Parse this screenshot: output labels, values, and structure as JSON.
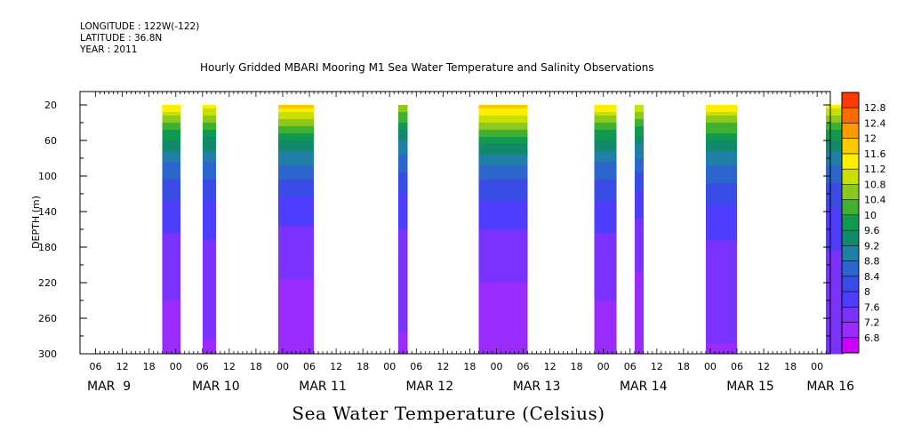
{
  "header": {
    "longitude": "LONGITUDE : 122W(-122)",
    "latitude": "LATITUDE : 36.8N",
    "year": "YEAR : 2011"
  },
  "chart_data": {
    "type": "heatmap",
    "title": "Hourly Gridded MBARI Mooring M1 Sea Water Temperature and Salinity Observations",
    "xlabel": "Sea Water Temperature (Celsius)",
    "ylabel": "DEPTH (m)",
    "x_unit": "hours since 2011-03-09 00:00",
    "xlim": [
      6,
      174
    ],
    "ylim": [
      300,
      5
    ],
    "y_ticks": [
      20,
      60,
      100,
      140,
      180,
      220,
      260,
      300
    ],
    "x_hour_ticks": [
      {
        "h": 6,
        "label": "06"
      },
      {
        "h": 12,
        "label": "12"
      },
      {
        "h": 18,
        "label": "18"
      },
      {
        "h": 24,
        "label": "00"
      },
      {
        "h": 30,
        "label": "06"
      },
      {
        "h": 36,
        "label": "12"
      },
      {
        "h": 42,
        "label": "18"
      },
      {
        "h": 48,
        "label": "00"
      },
      {
        "h": 54,
        "label": "06"
      },
      {
        "h": 60,
        "label": "12"
      },
      {
        "h": 66,
        "label": "18"
      },
      {
        "h": 72,
        "label": "00"
      },
      {
        "h": 78,
        "label": "06"
      },
      {
        "h": 84,
        "label": "12"
      },
      {
        "h": 90,
        "label": "18"
      },
      {
        "h": 96,
        "label": "00"
      },
      {
        "h": 102,
        "label": "06"
      },
      {
        "h": 108,
        "label": "12"
      },
      {
        "h": 114,
        "label": "18"
      },
      {
        "h": 120,
        "label": "00"
      },
      {
        "h": 126,
        "label": "06"
      },
      {
        "h": 132,
        "label": "12"
      },
      {
        "h": 138,
        "label": "18"
      },
      {
        "h": 144,
        "label": "00"
      },
      {
        "h": 150,
        "label": "06"
      },
      {
        "h": 156,
        "label": "12"
      },
      {
        "h": 162,
        "label": "18"
      },
      {
        "h": 168,
        "label": "00"
      }
    ],
    "date_labels": [
      {
        "h": 9,
        "label": "MAR  9"
      },
      {
        "h": 33,
        "label": "MAR 10"
      },
      {
        "h": 57,
        "label": "MAR 11"
      },
      {
        "h": 81,
        "label": "MAR 12"
      },
      {
        "h": 105,
        "label": "MAR 13"
      },
      {
        "h": 129,
        "label": "MAR 14"
      },
      {
        "h": 153,
        "label": "MAR 15"
      },
      {
        "h": 171,
        "label": "MAR 16"
      }
    ],
    "colorbar": {
      "levels": [
        6.8,
        7.2,
        7.6,
        8,
        8.4,
        8.8,
        9.2,
        9.6,
        10,
        10.4,
        10.8,
        11.2,
        11.6,
        12,
        12.4,
        12.8
      ],
      "colors": [
        "#cc00ff",
        "#9a2bff",
        "#7a33ff",
        "#4d3dff",
        "#3a4ce6",
        "#2a66cc",
        "#1f7fa6",
        "#118a6a",
        "#109a50",
        "#3fb030",
        "#8ec81a",
        "#c8e000",
        "#ffee00",
        "#ffc800",
        "#ff9a00",
        "#ff6a00",
        "#ff3a00",
        "#e01000",
        "#a00000"
      ]
    },
    "segments": [
      {
        "start": 21,
        "end": 25,
        "surface_temp": 11.6,
        "deep_temp": 7.0
      },
      {
        "start": 30,
        "end": 33,
        "surface_temp": 11.4,
        "deep_temp": 7.1
      },
      {
        "start": 47,
        "end": 55,
        "surface_temp": 11.8,
        "deep_temp": 6.9
      },
      {
        "start": 74,
        "end": 76,
        "surface_temp": 10.9,
        "deep_temp": 7.1
      },
      {
        "start": 92,
        "end": 103,
        "surface_temp": 12.0,
        "deep_temp": 6.9
      },
      {
        "start": 118,
        "end": 123,
        "surface_temp": 11.6,
        "deep_temp": 7.0
      },
      {
        "start": 127,
        "end": 129,
        "surface_temp": 11.3,
        "deep_temp": 6.9
      },
      {
        "start": 143,
        "end": 150,
        "surface_temp": 11.6,
        "deep_temp": 7.1
      },
      {
        "start": 170,
        "end": 174,
        "surface_temp": 11.4,
        "deep_temp": 7.2
      }
    ]
  }
}
